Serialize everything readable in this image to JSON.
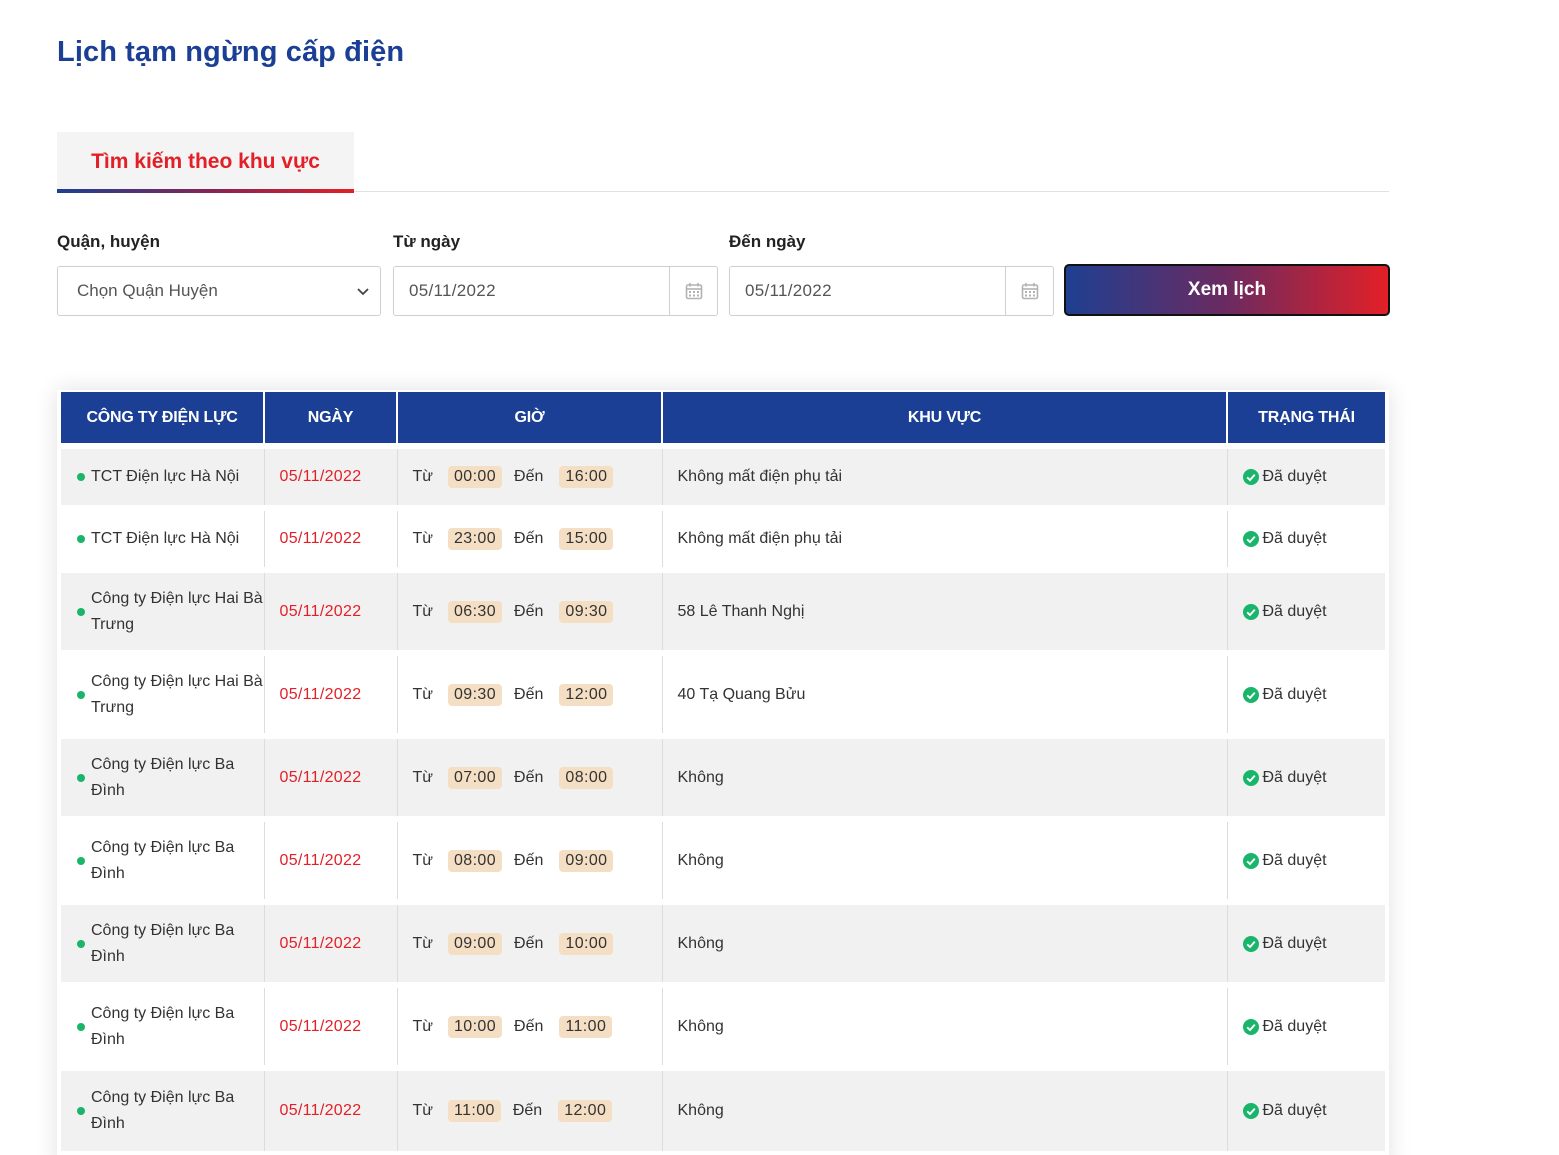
{
  "page": {
    "title": "Lịch tạm ngừng cấp điện"
  },
  "tabs": [
    {
      "label": "Tìm kiếm theo khu vực",
      "active": true
    }
  ],
  "filters": {
    "district": {
      "label": "Quận, huyện",
      "value": "Chọn Quận Huyện"
    },
    "from_date": {
      "label": "Từ ngày",
      "value": "05/11/2022"
    },
    "to_date": {
      "label": "Đến ngày",
      "value": "05/11/2022"
    },
    "submit_label": "Xem lịch"
  },
  "table": {
    "headers": [
      "CÔNG TY ĐIỆN LỰC",
      "NGÀY",
      "GIỜ",
      "KHU VỰC",
      "TRẠNG THÁI"
    ],
    "from_label": "Từ",
    "to_label": "Đến",
    "rows": [
      {
        "company": "TCT Điện lực Hà Nội",
        "date": "05/11/2022",
        "from": "00:00",
        "to": "16:00",
        "area": "Không mất điện phụ tải",
        "status": "Đã duyệt"
      },
      {
        "company": "TCT Điện lực Hà Nội",
        "date": "05/11/2022",
        "from": "23:00",
        "to": "15:00",
        "area": "Không mất điện phụ tải",
        "status": "Đã duyệt"
      },
      {
        "company": "Công ty Điện lực Hai Bà Trưng",
        "date": "05/11/2022",
        "from": "06:30",
        "to": "09:30",
        "area": "58 Lê Thanh Nghị",
        "status": "Đã duyệt"
      },
      {
        "company": "Công ty Điện lực Hai Bà Trưng",
        "date": "05/11/2022",
        "from": "09:30",
        "to": "12:00",
        "area": "40 Tạ Quang Bửu",
        "status": "Đã duyệt"
      },
      {
        "company": "Công ty Điện lực Ba Đình",
        "date": "05/11/2022",
        "from": "07:00",
        "to": "08:00",
        "area": "Không",
        "status": "Đã duyệt"
      },
      {
        "company": "Công ty Điện lực Ba Đình",
        "date": "05/11/2022",
        "from": "08:00",
        "to": "09:00",
        "area": "Không",
        "status": "Đã duyệt"
      },
      {
        "company": "Công ty Điện lực Ba Đình",
        "date": "05/11/2022",
        "from": "09:00",
        "to": "10:00",
        "area": "Không",
        "status": "Đã duyệt"
      },
      {
        "company": "Công ty Điện lực Ba Đình",
        "date": "05/11/2022",
        "from": "10:00",
        "to": "11:00",
        "area": "Không",
        "status": "Đã duyệt"
      },
      {
        "company": "Công ty Điện lực Ba Đình",
        "date": "05/11/2022",
        "from": "11:00",
        "to": "12:00",
        "area": "Không",
        "status": "Đã duyệt"
      }
    ]
  },
  "icons": {
    "select": "chevron-down-icon",
    "date": "calendar-icon",
    "status": "check-circle-icon",
    "company": "status-dot-icon"
  },
  "colors": {
    "brand_blue": "#1a3f94",
    "brand_red": "#e32027",
    "status_green": "#19b56b",
    "time_badge": "#f5dfc4"
  }
}
